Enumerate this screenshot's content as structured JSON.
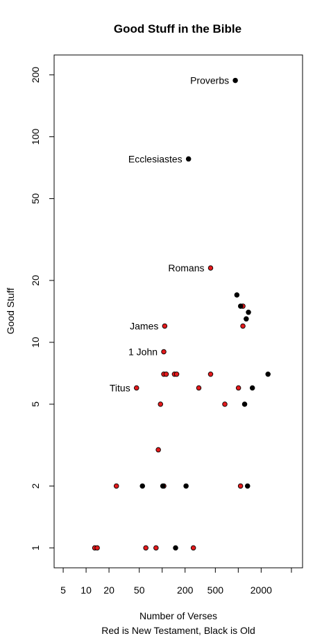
{
  "chart_data": {
    "type": "scatter",
    "title": "Good Stuff in the Bible",
    "xlabel": "Number of Verses",
    "xlabel2": "Red is New Testament, Black is Old",
    "ylabel": "Good Stuff",
    "xscale": "log",
    "yscale": "log",
    "xlim": [
      3.8,
      7000
    ],
    "ylim": [
      0.8,
      250
    ],
    "xticks": [
      5,
      10,
      20,
      50,
      200,
      500,
      2000
    ],
    "xtick_marks": [
      5,
      10,
      20,
      50,
      100,
      200,
      500,
      1000,
      2000,
      5000
    ],
    "yticks": [
      1,
      2,
      5,
      10,
      20,
      50,
      100,
      200
    ],
    "colors": {
      "new": "#e31a1c",
      "old": "#000000"
    },
    "labels": [
      {
        "text": "Proverbs",
        "x": 915,
        "y": 188
      },
      {
        "text": "Ecclesiastes",
        "x": 222,
        "y": 78
      },
      {
        "text": "Romans",
        "x": 433,
        "y": 23
      },
      {
        "text": "James",
        "x": 108,
        "y": 12
      },
      {
        "text": "1 John",
        "x": 105,
        "y": 9
      },
      {
        "text": "Titus",
        "x": 46,
        "y": 6
      }
    ],
    "series": [
      {
        "name": "New Testament",
        "color": "#e31a1c",
        "points": [
          [
            13,
            1
          ],
          [
            14,
            1
          ],
          [
            61,
            1
          ],
          [
            83,
            1
          ],
          [
            257,
            1
          ],
          [
            25,
            2
          ],
          [
            105,
            2
          ],
          [
            1071,
            2
          ],
          [
            89,
            3
          ],
          [
            95,
            5
          ],
          [
            666,
            5
          ],
          [
            46,
            6
          ],
          [
            303,
            6
          ],
          [
            1006,
            6
          ],
          [
            105,
            7
          ],
          [
            113,
            7
          ],
          [
            145,
            7
          ],
          [
            155,
            7
          ],
          [
            433,
            7
          ],
          [
            105,
            9
          ],
          [
            108,
            12
          ],
          [
            1151,
            12
          ],
          [
            1151,
            15
          ],
          [
            433,
            23
          ]
        ]
      },
      {
        "name": "Old Testament",
        "color": "#000000",
        "points": [
          [
            150,
            1
          ],
          [
            55,
            2
          ],
          [
            102,
            2
          ],
          [
            206,
            2
          ],
          [
            1325,
            2
          ],
          [
            1213,
            5
          ],
          [
            1533,
            6
          ],
          [
            2461,
            7
          ],
          [
            1273,
            13
          ],
          [
            1362,
            14
          ],
          [
            1074,
            15
          ],
          [
            959,
            17
          ],
          [
            222,
            78
          ],
          [
            915,
            188
          ]
        ]
      }
    ]
  }
}
